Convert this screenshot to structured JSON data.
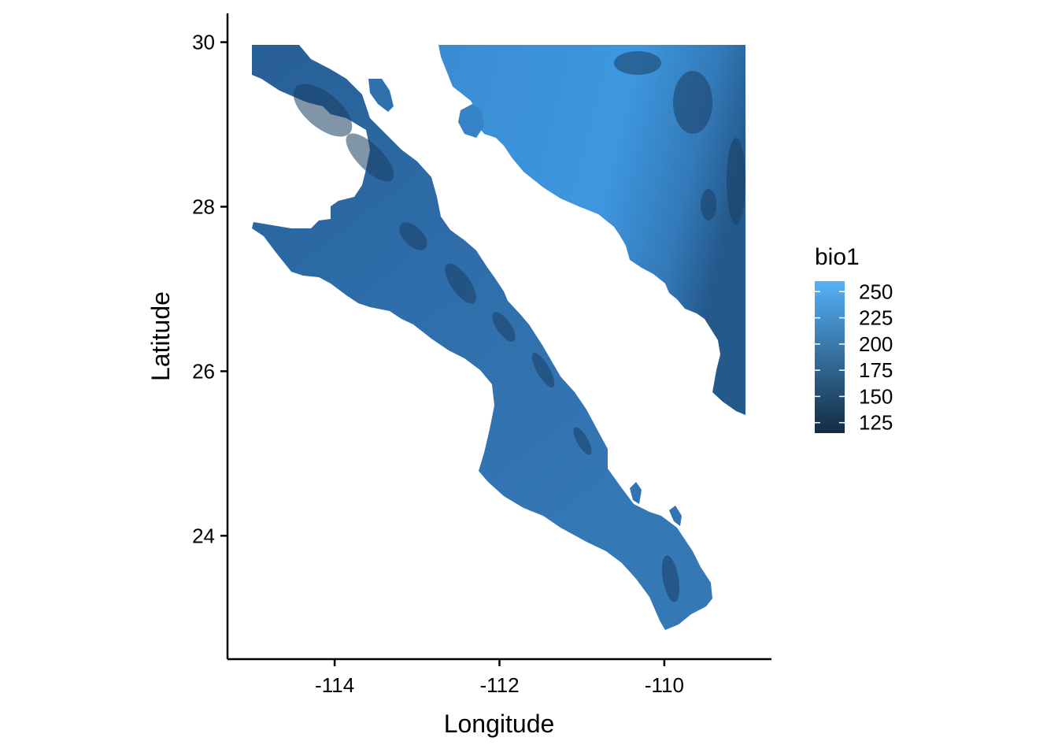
{
  "map": {
    "xlabel": "Longitude",
    "ylabel": "Latitude",
    "x_ticks": [
      {
        "value": -114,
        "label": "-114"
      },
      {
        "value": -112,
        "label": "-112"
      },
      {
        "value": -110,
        "label": "-110"
      }
    ],
    "y_ticks": [
      {
        "value": 30,
        "label": "30"
      },
      {
        "value": 28,
        "label": "28"
      },
      {
        "value": 26,
        "label": "26"
      },
      {
        "value": 24,
        "label": "24"
      }
    ],
    "xlim": [
      -115.3,
      -108.7
    ],
    "ylim": [
      22.5,
      30.35
    ],
    "extent": {
      "lon_min": -115,
      "lon_max": -109,
      "lat_min": 22.8,
      "lat_max": 30
    }
  },
  "legend": {
    "title": "bio1",
    "labels": [
      "250",
      "225",
      "200",
      "175",
      "150",
      "125"
    ],
    "values": [
      250,
      225,
      200,
      175,
      150,
      125
    ],
    "range": [
      115,
      260
    ],
    "color_low": "#132B43",
    "color_high": "#56B1F7"
  },
  "colors": {
    "water": "#ffffff",
    "peninsula_base": "#2f70ad",
    "mainland_base": "#3f95dc",
    "ridge_dark": "#1b3f63"
  }
}
